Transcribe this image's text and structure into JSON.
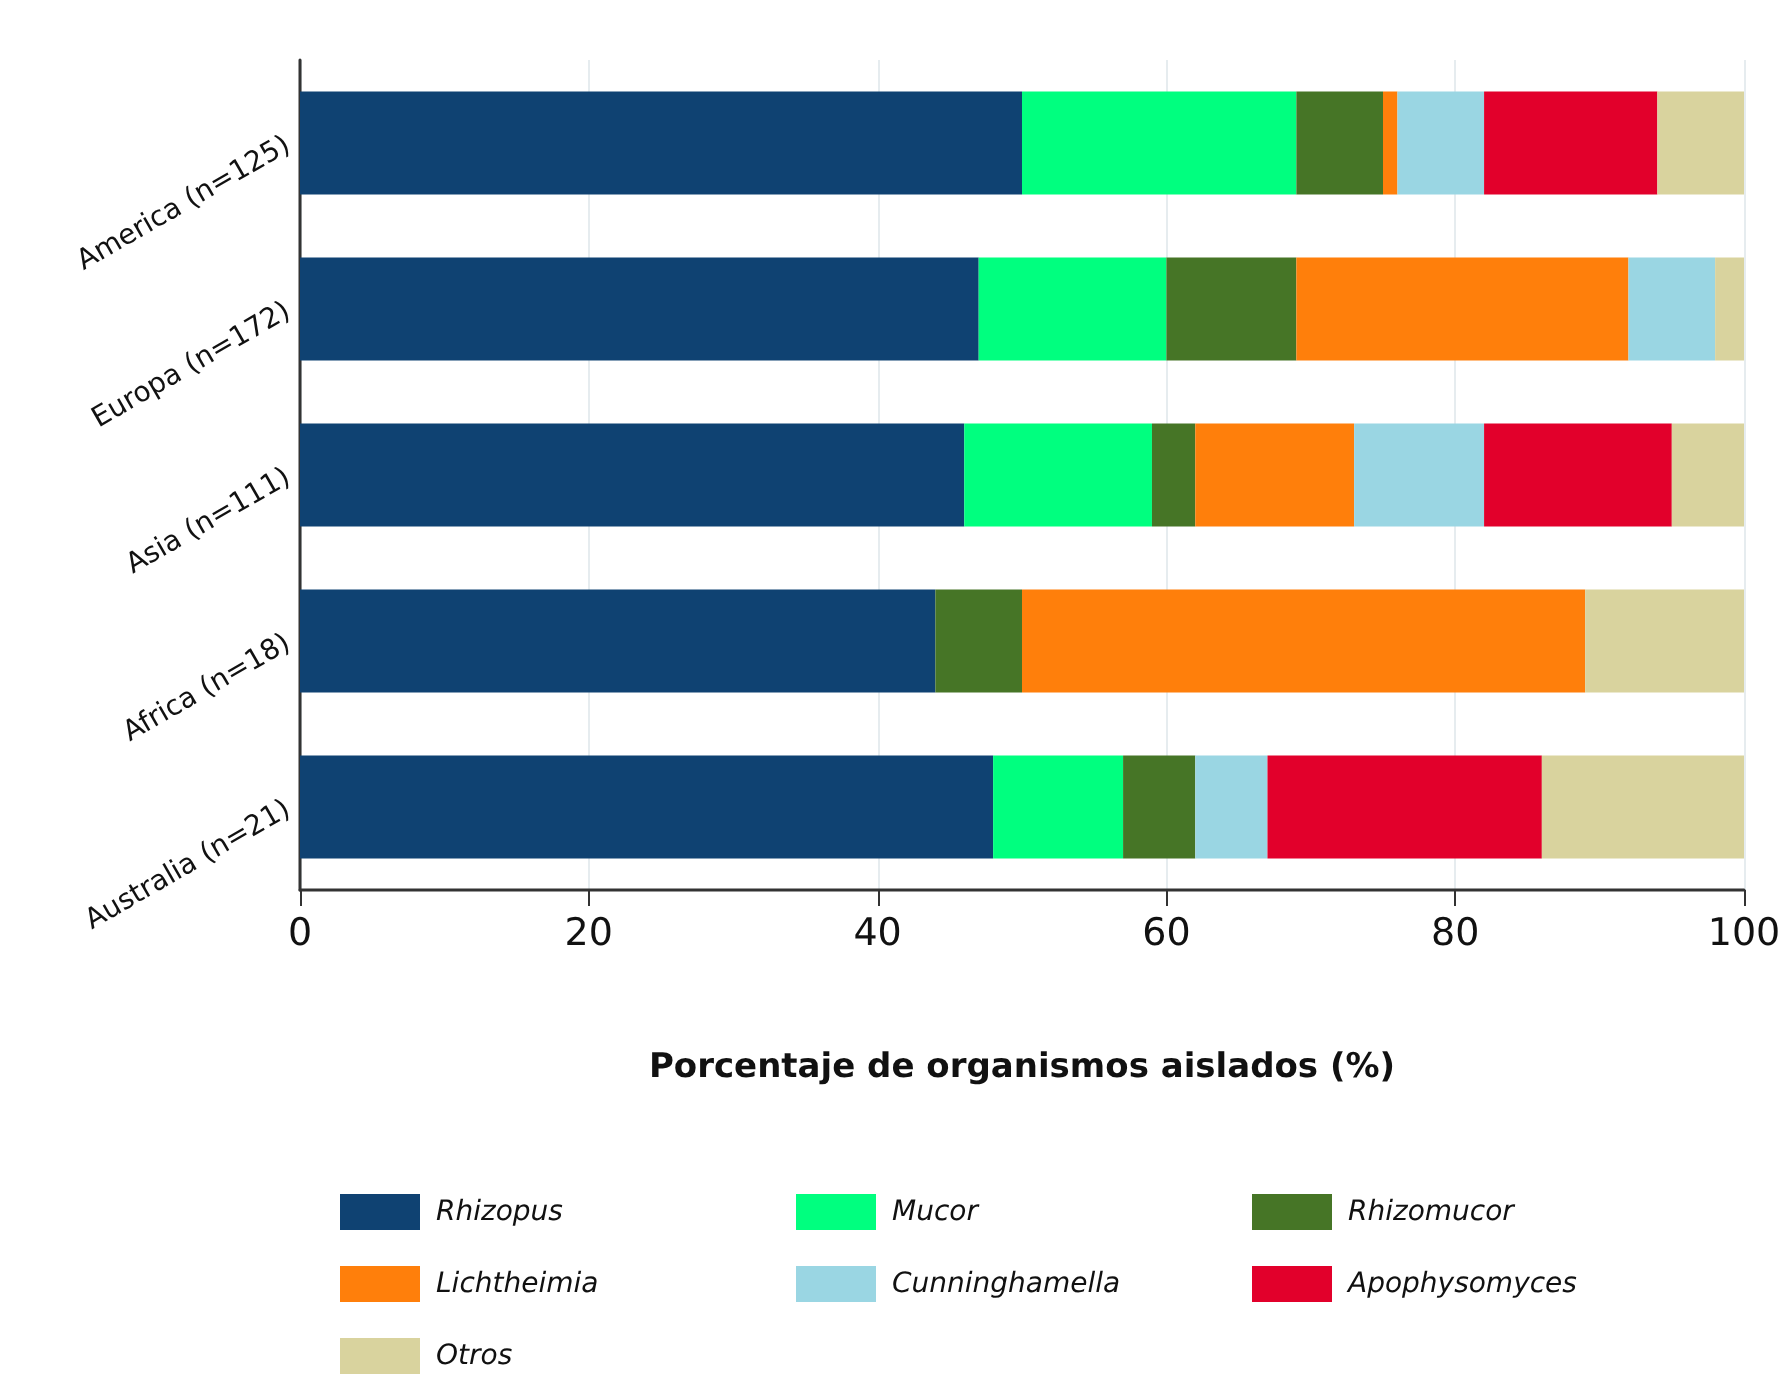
{
  "chart_data": {
    "type": "bar",
    "orientation": "horizontal",
    "stacked": true,
    "xlabel": "Porcentaje de organismos aislados (%)",
    "categories": [
      "America (n=125)",
      "Europa (n=172)",
      "Asia (n=111)",
      "Africa (n=18)",
      "Australia (n=21)"
    ],
    "series": [
      {
        "name": "Rhizopus",
        "color": "#0f4272",
        "values": [
          50,
          47,
          46,
          44,
          48
        ]
      },
      {
        "name": "Mucor",
        "color": "#00ff7f",
        "values": [
          19,
          13,
          13,
          0,
          9
        ]
      },
      {
        "name": "Rhizomucor",
        "color": "#467526",
        "values": [
          6,
          9,
          3,
          6,
          5
        ]
      },
      {
        "name": "Lichtheimia",
        "color": "#ff7f0b",
        "values": [
          1,
          23,
          11,
          39,
          0
        ]
      },
      {
        "name": "Cunninghamella",
        "color": "#9ad6e3",
        "values": [
          6,
          6,
          9,
          0,
          5
        ]
      },
      {
        "name": "Apophysomyces",
        "color": "#e2002b",
        "values": [
          12,
          0,
          13,
          0,
          19
        ]
      },
      {
        "name": "Otros",
        "color": "#d9d39e",
        "values": [
          6,
          2,
          5,
          11,
          14
        ]
      }
    ],
    "xlim": [
      0,
      100
    ],
    "xticks": [
      0,
      20,
      40,
      60,
      80,
      100
    ],
    "grid": "x",
    "legend": "bottom"
  }
}
